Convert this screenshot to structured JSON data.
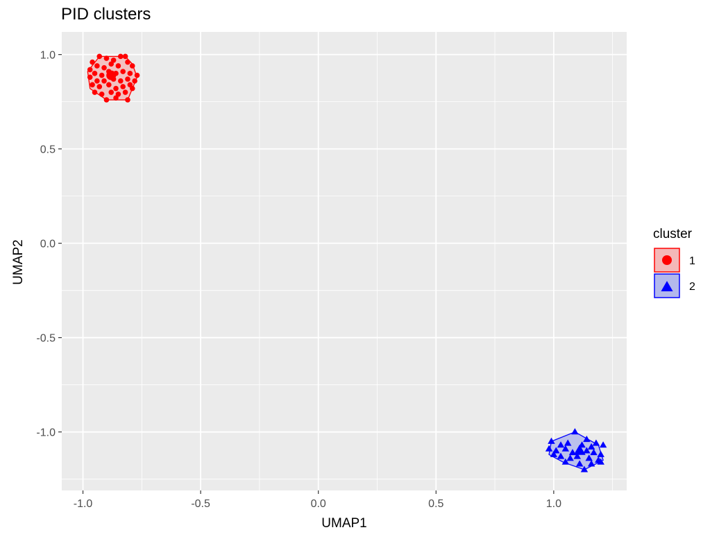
{
  "chart_data": {
    "type": "scatter",
    "title": "PID clusters",
    "xlabel": "UMAP1",
    "ylabel": "UMAP2",
    "xlim": [
      -1.09,
      1.31
    ],
    "ylim": [
      -1.31,
      1.12
    ],
    "x_ticks": [
      -1.0,
      -0.5,
      0.0,
      0.5,
      1.0
    ],
    "x_tick_labels": [
      "-1.0",
      "-0.5",
      "0.0",
      "0.5",
      "1.0"
    ],
    "y_ticks": [
      -1.0,
      -0.5,
      0.0,
      0.5,
      1.0
    ],
    "y_tick_labels": [
      "-1.0",
      "-0.5",
      "0.0",
      "0.5",
      "1.0"
    ],
    "grid": true,
    "legend": {
      "title": "cluster",
      "position": "right",
      "entries": [
        {
          "label": "1",
          "shape": "circle",
          "color": "#ff0000",
          "fill": "#f4b8b8"
        },
        {
          "label": "2",
          "shape": "triangle",
          "color": "#0000ff",
          "fill": "#b3b8ec"
        }
      ]
    },
    "series": [
      {
        "name": "1",
        "shape": "circle",
        "color": "#ff0000",
        "hull_fill": "#f4b8b8",
        "centroid": [
          -0.88,
          0.89
        ],
        "hull": [
          [
            -0.93,
            0.99
          ],
          [
            -0.82,
            0.99
          ],
          [
            -0.79,
            0.95
          ],
          [
            -0.77,
            0.88
          ],
          [
            -0.79,
            0.82
          ],
          [
            -0.81,
            0.76
          ],
          [
            -0.9,
            0.76
          ],
          [
            -0.97,
            0.82
          ],
          [
            -0.98,
            0.91
          ]
        ],
        "points": [
          [
            -0.93,
            0.99
          ],
          [
            -0.9,
            0.98
          ],
          [
            -0.87,
            0.97
          ],
          [
            -0.84,
            0.99
          ],
          [
            -0.82,
            0.99
          ],
          [
            -0.96,
            0.96
          ],
          [
            -0.94,
            0.94
          ],
          [
            -0.91,
            0.93
          ],
          [
            -0.88,
            0.95
          ],
          [
            -0.85,
            0.94
          ],
          [
            -0.81,
            0.96
          ],
          [
            -0.79,
            0.94
          ],
          [
            -0.97,
            0.92
          ],
          [
            -0.95,
            0.9
          ],
          [
            -0.92,
            0.89
          ],
          [
            -0.89,
            0.91
          ],
          [
            -0.86,
            0.9
          ],
          [
            -0.83,
            0.91
          ],
          [
            -0.8,
            0.9
          ],
          [
            -0.77,
            0.89
          ],
          [
            -0.97,
            0.88
          ],
          [
            -0.94,
            0.86
          ],
          [
            -0.91,
            0.86
          ],
          [
            -0.87,
            0.87
          ],
          [
            -0.84,
            0.86
          ],
          [
            -0.81,
            0.87
          ],
          [
            -0.78,
            0.86
          ],
          [
            -0.96,
            0.84
          ],
          [
            -0.93,
            0.83
          ],
          [
            -0.89,
            0.84
          ],
          [
            -0.86,
            0.82
          ],
          [
            -0.83,
            0.83
          ],
          [
            -0.8,
            0.84
          ],
          [
            -0.95,
            0.8
          ],
          [
            -0.92,
            0.79
          ],
          [
            -0.88,
            0.8
          ],
          [
            -0.85,
            0.79
          ],
          [
            -0.82,
            0.8
          ],
          [
            -0.79,
            0.82
          ],
          [
            -0.9,
            0.76
          ],
          [
            -0.86,
            0.77
          ],
          [
            -0.81,
            0.76
          ]
        ]
      },
      {
        "name": "2",
        "shape": "triangle",
        "color": "#0000ff",
        "hull_fill": "#b3b8ec",
        "centroid": [
          1.11,
          -1.1
        ],
        "hull": [
          [
            1.09,
            -1.0
          ],
          [
            1.19,
            -1.07
          ],
          [
            1.21,
            -1.15
          ],
          [
            1.13,
            -1.2
          ],
          [
            1.04,
            -1.16
          ],
          [
            0.98,
            -1.12
          ],
          [
            0.99,
            -1.05
          ]
        ],
        "points": [
          [
            1.09,
            -1.0
          ],
          [
            1.14,
            -1.04
          ],
          [
            1.18,
            -1.06
          ],
          [
            1.21,
            -1.07
          ],
          [
            0.99,
            -1.05
          ],
          [
            1.03,
            -1.07
          ],
          [
            1.06,
            -1.06
          ],
          [
            1.12,
            -1.07
          ],
          [
            1.16,
            -1.08
          ],
          [
            0.98,
            -1.09
          ],
          [
            1.01,
            -1.1
          ],
          [
            1.05,
            -1.09
          ],
          [
            1.08,
            -1.11
          ],
          [
            1.14,
            -1.1
          ],
          [
            1.17,
            -1.11
          ],
          [
            1.2,
            -1.12
          ],
          [
            1.0,
            -1.12
          ],
          [
            1.03,
            -1.13
          ],
          [
            1.07,
            -1.14
          ],
          [
            1.1,
            -1.13
          ],
          [
            1.15,
            -1.14
          ],
          [
            1.19,
            -1.15
          ],
          [
            1.05,
            -1.16
          ],
          [
            1.11,
            -1.17
          ],
          [
            1.16,
            -1.17
          ],
          [
            1.13,
            -1.2
          ],
          [
            1.2,
            -1.16
          ]
        ]
      }
    ]
  }
}
